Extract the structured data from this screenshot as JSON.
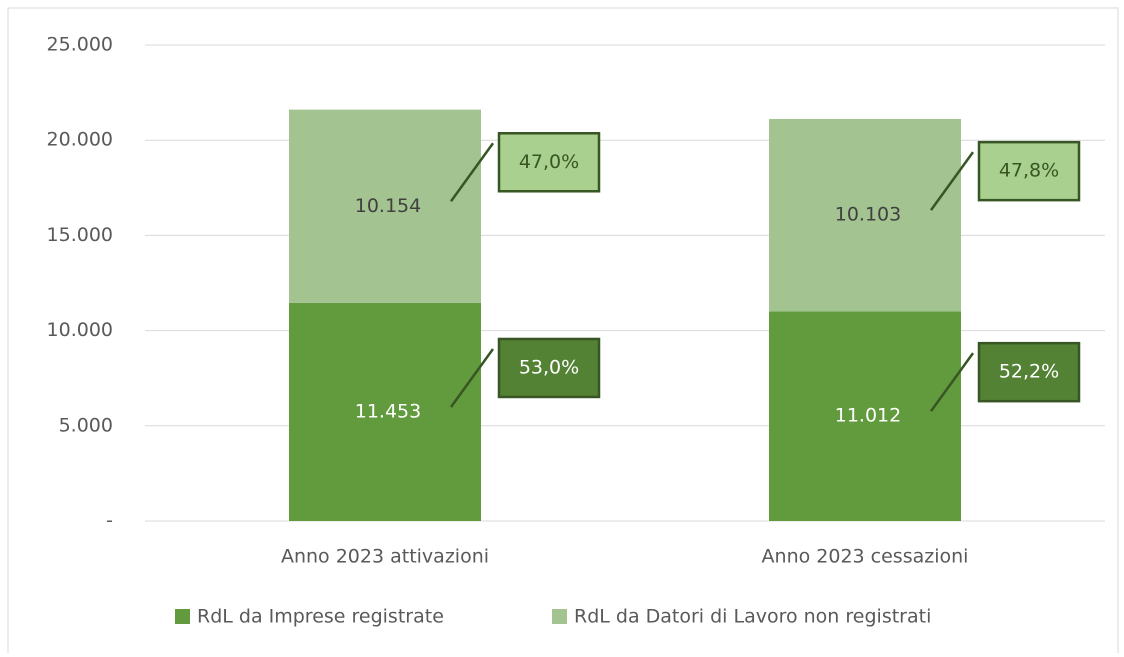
{
  "chart_data": {
    "type": "stacked_bar",
    "categories": [
      "Anno 2023 attivazioni",
      "Anno 2023 cessazioni"
    ],
    "series": [
      {
        "name": "RdL da Imprese registrate",
        "color": "#629b3d",
        "values": [
          11453,
          11012
        ],
        "value_labels": [
          "11.453",
          "11.012"
        ],
        "percent_labels": [
          "53,0%",
          "52,2%"
        ]
      },
      {
        "name": "RdL da Datori di Lavoro non registrati",
        "color": "#a3c490",
        "values": [
          10154,
          10103
        ],
        "value_labels": [
          "10.154",
          "10.103"
        ],
        "percent_labels": [
          "47,0%",
          "47,8%"
        ]
      }
    ],
    "ylim": [
      0,
      25000
    ],
    "yticks": [
      {
        "value": 0,
        "label": "-"
      },
      {
        "value": 5000,
        "label": "5.000"
      },
      {
        "value": 10000,
        "label": "10.000"
      },
      {
        "value": 15000,
        "label": "15.000"
      },
      {
        "value": 20000,
        "label": "20.000"
      },
      {
        "value": 25000,
        "label": "25.000"
      }
    ],
    "grid": true,
    "legend": "bottom"
  }
}
